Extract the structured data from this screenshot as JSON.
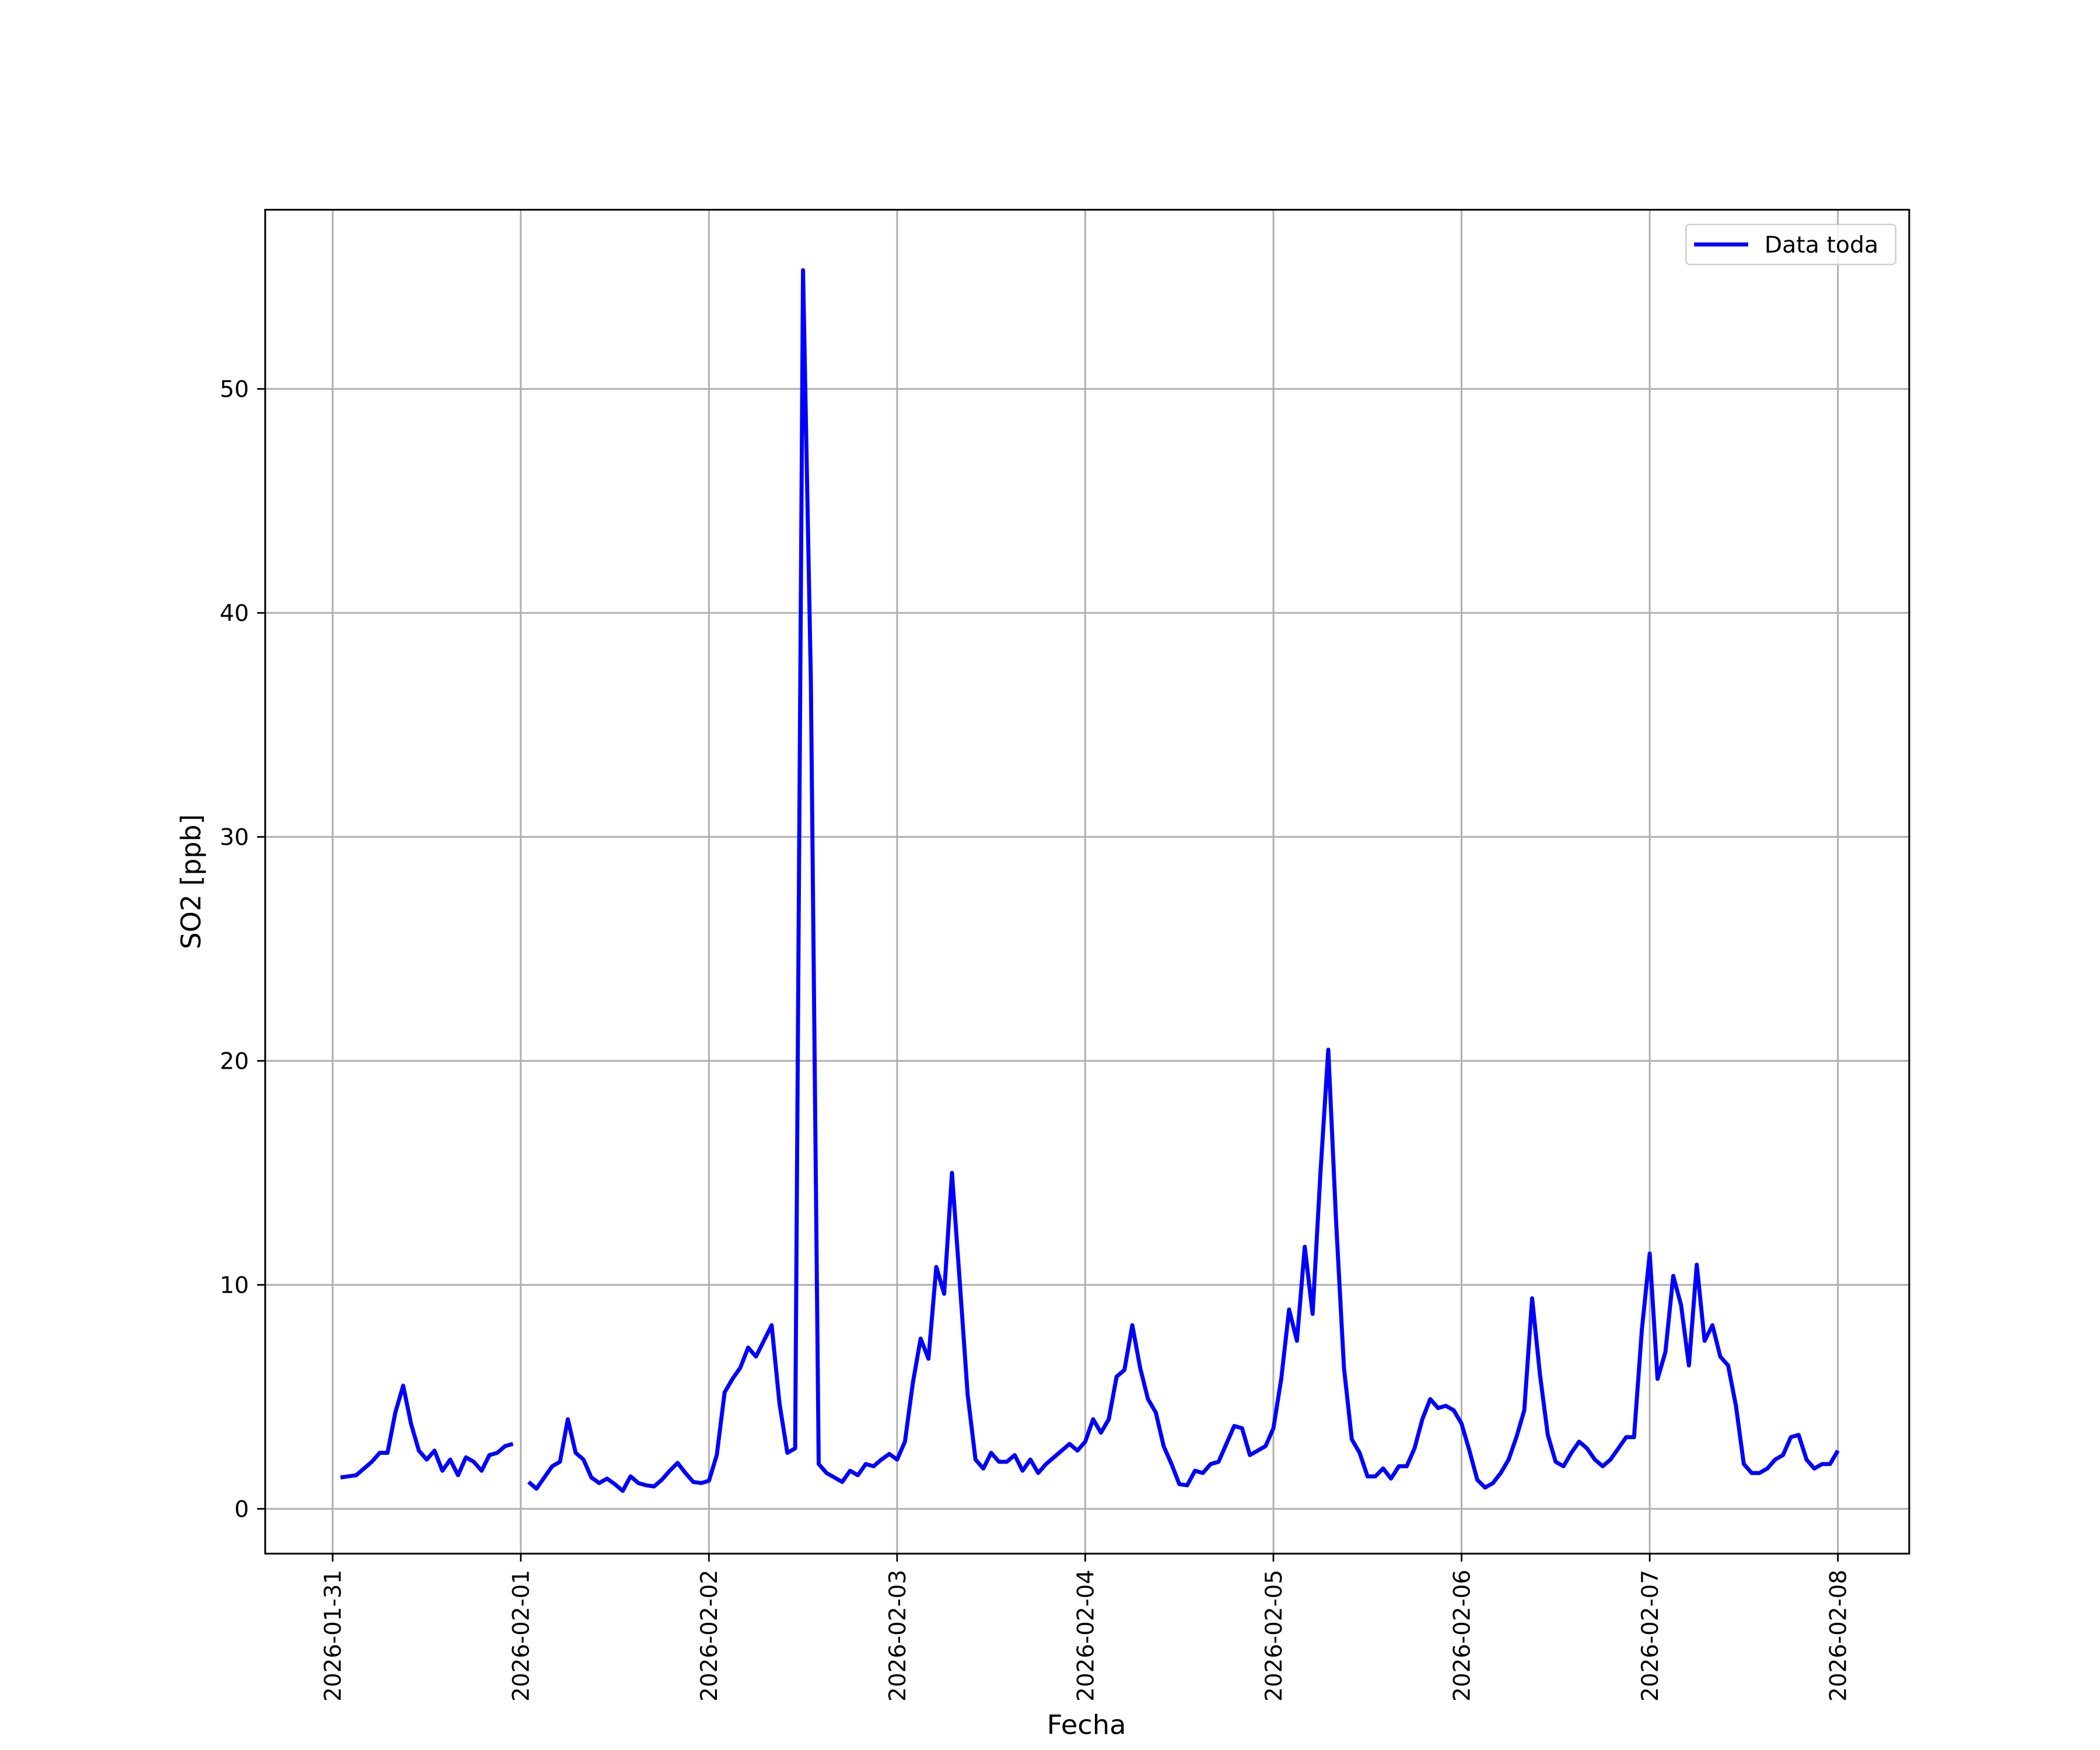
{
  "chart_data": {
    "type": "line",
    "xlabel": "Fecha",
    "ylabel": "SO2 [ppb]",
    "x": [
      1,
      2,
      3,
      4,
      5,
      6,
      7,
      8,
      9,
      10,
      11,
      12,
      13,
      14,
      15,
      16,
      17,
      18,
      19,
      20,
      21,
      22,
      23,
      24,
      25,
      26,
      27,
      28,
      29,
      30,
      31,
      32,
      33,
      34,
      35,
      36,
      37,
      38,
      39,
      40,
      41,
      42,
      43,
      44,
      45,
      46,
      47,
      48,
      49,
      50,
      51,
      52,
      53,
      54,
      55,
      56,
      57,
      58,
      59,
      60,
      61,
      62,
      63,
      64,
      65,
      66,
      67,
      68,
      69,
      70,
      71,
      72,
      73,
      74,
      75,
      76,
      77,
      78,
      79,
      80,
      81,
      82,
      83,
      84,
      85,
      86,
      87,
      88,
      89,
      90,
      91,
      92,
      93,
      94,
      95,
      96,
      97,
      98,
      99,
      100,
      101,
      102,
      103,
      104,
      105,
      106,
      107,
      108,
      109,
      110,
      111,
      112,
      113,
      114,
      115,
      116,
      117,
      118,
      119,
      120,
      121,
      122,
      123,
      124,
      125,
      126,
      127,
      128,
      129,
      130,
      131,
      132,
      133,
      134,
      135,
      136,
      137,
      138,
      139,
      140,
      141,
      142,
      143,
      144,
      145,
      146,
      147,
      148,
      149,
      150,
      151,
      152,
      153,
      154,
      155,
      156,
      157,
      158,
      159,
      160,
      161,
      162,
      163,
      164,
      165,
      166,
      167,
      168,
      169,
      170,
      171,
      172,
      173,
      174,
      175,
      176,
      177,
      178,
      179,
      180,
      181,
      182,
      183,
      184,
      185,
      186,
      187,
      188,
      189,
      190,
      191,
      192
    ],
    "series": [
      {
        "name": "Data toda",
        "color": "#0000ff",
        "values": [
          1.4,
          1.45,
          1.5,
          1.8,
          2.1,
          2.5,
          2.5,
          4.3,
          5.5,
          3.8,
          2.6,
          2.2,
          2.6,
          1.7,
          2.2,
          1.5,
          2.3,
          2.1,
          1.7,
          2.4,
          2.5,
          2.8,
          2.9,
          null,
          1.2,
          0.9,
          1.4,
          1.9,
          2.1,
          4.0,
          2.5,
          2.2,
          1.4,
          1.15,
          1.35,
          1.1,
          0.8,
          1.45,
          1.15,
          1.05,
          1.0,
          1.3,
          1.7,
          2.05,
          1.6,
          1.2,
          1.15,
          1.25,
          2.4,
          5.2,
          5.8,
          6.3,
          7.2,
          6.8,
          7.5,
          8.2,
          4.7,
          2.5,
          2.7,
          55.3,
          37,
          2.0,
          1.6,
          1.4,
          1.2,
          1.7,
          1.5,
          2.0,
          1.9,
          2.2,
          2.45,
          2.2,
          3.0,
          5.6,
          7.6,
          6.7,
          10.8,
          9.6,
          15.0,
          10.1,
          5.1,
          2.2,
          1.8,
          2.5,
          2.1,
          2.1,
          2.4,
          1.7,
          2.2,
          1.6,
          2.0,
          2.3,
          2.6,
          2.9,
          2.6,
          3.0,
          4.0,
          3.4,
          4.0,
          5.9,
          6.2,
          8.2,
          6.3,
          4.9,
          4.3,
          2.8,
          2.0,
          1.1,
          1.05,
          1.7,
          1.6,
          2.0,
          2.1,
          2.9,
          3.7,
          3.6,
          2.4,
          2.6,
          2.8,
          3.6,
          5.8,
          8.9,
          7.5,
          11.7,
          8.7,
          15.0,
          20.5,
          12.8,
          6.3,
          3.1,
          2.5,
          1.45,
          1.45,
          1.8,
          1.35,
          1.9,
          1.9,
          2.7,
          4.0,
          4.9,
          4.5,
          4.6,
          4.4,
          3.8,
          2.6,
          1.3,
          0.95,
          1.15,
          1.6,
          2.2,
          3.2,
          4.4,
          9.4,
          6.0,
          3.3,
          2.1,
          1.9,
          2.5,
          3.0,
          2.7,
          2.2,
          1.9,
          2.2,
          2.7,
          3.2,
          3.2,
          8.0,
          11.4,
          5.8,
          7.0,
          10.4,
          9.1,
          6.4,
          10.9,
          7.5,
          8.2,
          6.8,
          6.4,
          4.6,
          2.0,
          1.6,
          1.6,
          1.8,
          2.2,
          2.4,
          3.2,
          3.3,
          2.2,
          1.8,
          2.0,
          2.0,
          2.6
        ]
      }
    ],
    "xlim": [
      -8.6,
      201.1
    ],
    "xticks": [
      {
        "value": 0,
        "label": "2026-01-31"
      },
      {
        "value": 24,
        "label": "2026-02-01"
      },
      {
        "value": 48,
        "label": "2026-02-02"
      },
      {
        "value": 72,
        "label": "2026-02-03"
      },
      {
        "value": 96,
        "label": "2026-02-04"
      },
      {
        "value": 120,
        "label": "2026-02-05"
      },
      {
        "value": 144,
        "label": "2026-02-06"
      },
      {
        "value": 168,
        "label": "2026-02-07"
      },
      {
        "value": 192,
        "label": "2026-02-08"
      }
    ],
    "ylim": [
      -2,
      58
    ],
    "yticks": [
      0,
      10,
      20,
      30,
      40,
      50
    ],
    "grid": true,
    "legend": "upper right"
  }
}
